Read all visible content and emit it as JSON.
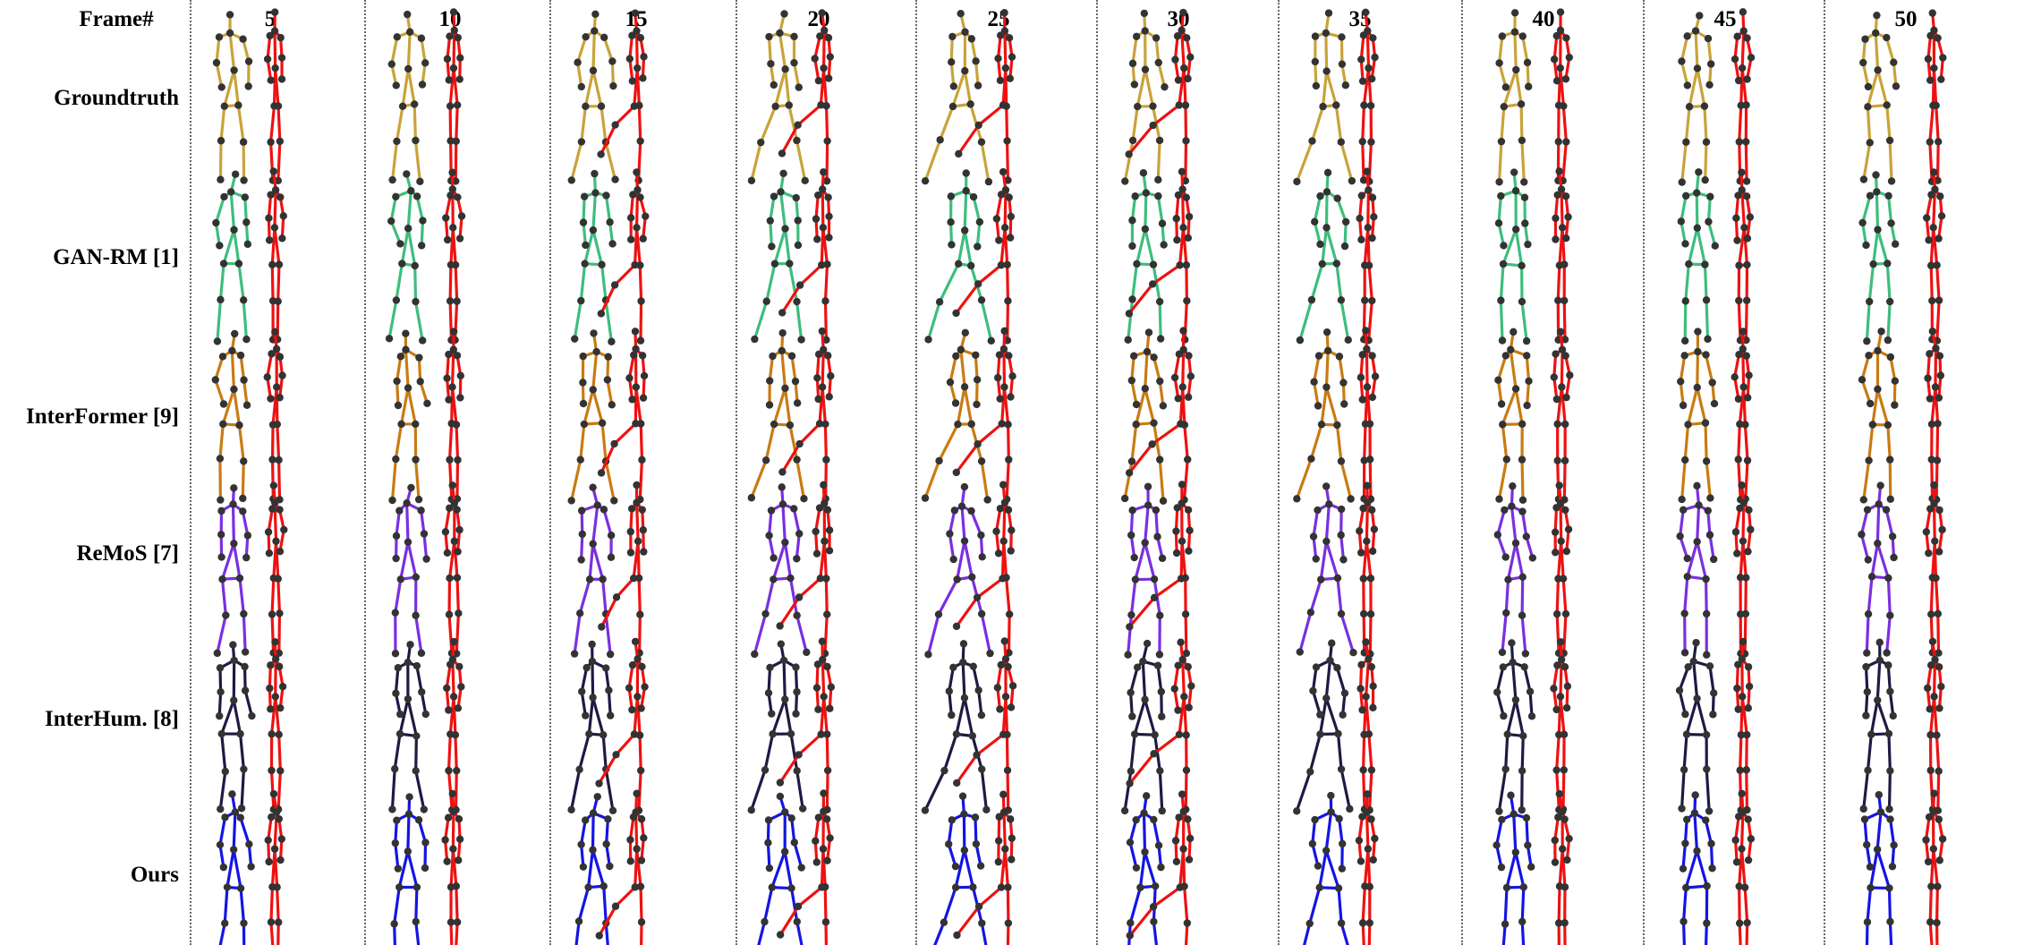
{
  "header_label": "Frame#",
  "frames": [
    "5",
    "10",
    "15",
    "20",
    "25",
    "30",
    "35",
    "40",
    "45",
    "50"
  ],
  "methods": [
    {
      "label": "Groundtruth",
      "color": "#C9A33A"
    },
    {
      "label": "GAN-RM [1]",
      "color": "#3DBE7C"
    },
    {
      "label": "InterFormer [9]",
      "color": "#C97B12"
    },
    {
      "label": "ReMoS [7]",
      "color": "#7A2FE0"
    },
    {
      "label": "InterHum. [8]",
      "color": "#1E1A45"
    },
    {
      "label": "Ours",
      "color": "#1414E6"
    }
  ],
  "partner_color": "#EE1111",
  "joint_color": "#333333"
}
